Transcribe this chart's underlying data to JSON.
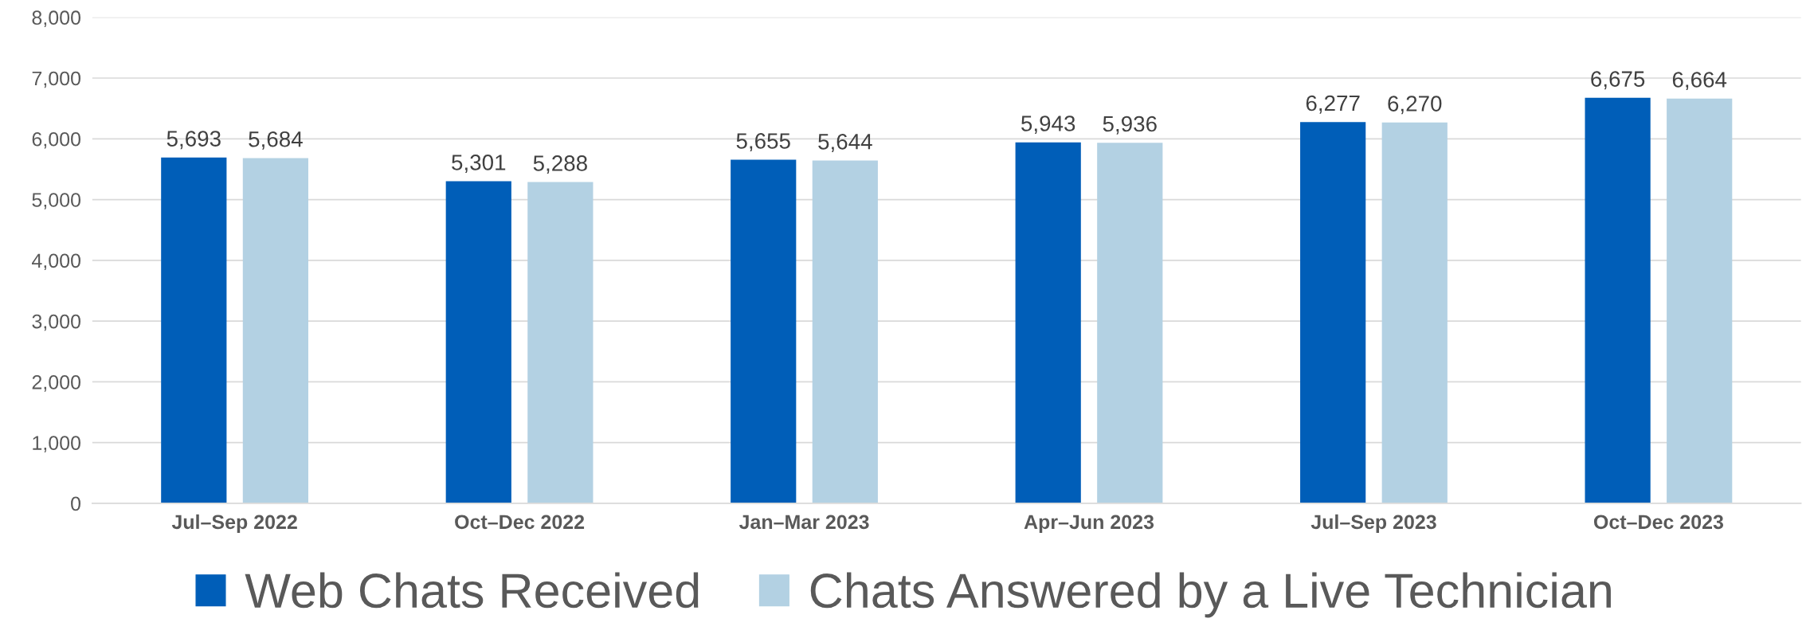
{
  "chart_data": {
    "type": "bar",
    "categories": [
      "Jul–Sep 2022",
      "Oct–Dec 2022",
      "Jan–Mar 2023",
      "Apr–Jun 2023",
      "Jul–Sep 2023",
      "Oct–Dec 2023"
    ],
    "series": [
      {
        "name": "Web Chats Received",
        "color": "#005eb8",
        "values": [
          5693,
          5301,
          5655,
          5943,
          6277,
          6675
        ],
        "value_labels": [
          "5,693",
          "5,301",
          "5,655",
          "5,943",
          "6,277",
          "6,675"
        ]
      },
      {
        "name": "Chats Answered by a Live Technician",
        "color": "#b3d1e3",
        "values": [
          5684,
          5288,
          5644,
          5936,
          6270,
          6664
        ],
        "value_labels": [
          "5,684",
          "5,288",
          "5,644",
          "5,936",
          "6,270",
          "6,664"
        ]
      }
    ],
    "ylim": [
      0,
      8000
    ],
    "yticks": [
      {
        "value": 0,
        "label": "0"
      },
      {
        "value": 1000,
        "label": "1,000"
      },
      {
        "value": 2000,
        "label": "2,000"
      },
      {
        "value": 3000,
        "label": "3,000"
      },
      {
        "value": 4000,
        "label": "4,000"
      },
      {
        "value": 5000,
        "label": "5,000"
      },
      {
        "value": 6000,
        "label": "6,000"
      },
      {
        "value": 7000,
        "label": "7,000"
      },
      {
        "value": 8000,
        "label": "8,000"
      }
    ],
    "grid": "y",
    "legend": "bottom"
  }
}
